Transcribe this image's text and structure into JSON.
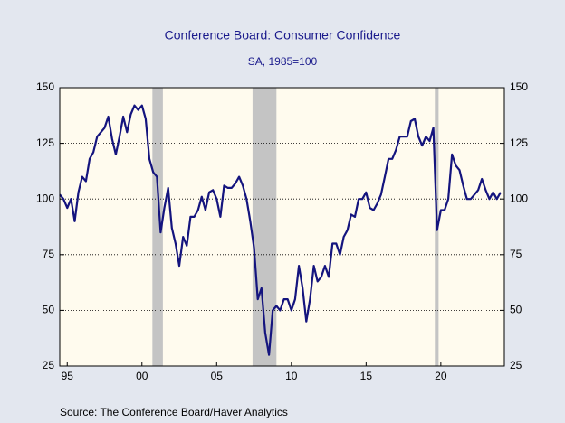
{
  "chart_data": {
    "type": "line",
    "title": "Conference Board: Consumer Confidence",
    "subtitle": "SA, 1985=100",
    "source": "Source:  The Conference Board/Haver Analytics",
    "xlim": [
      1995,
      2024.75
    ],
    "xticks": [
      {
        "value": 1995.5,
        "label": "95"
      },
      {
        "value": 2000.5,
        "label": "00"
      },
      {
        "value": 2005.5,
        "label": "05"
      },
      {
        "value": 2010.5,
        "label": "10"
      },
      {
        "value": 2015.5,
        "label": "15"
      },
      {
        "value": 2020.5,
        "label": "20"
      }
    ],
    "ylim": [
      25,
      150
    ],
    "yticks": [
      25,
      50,
      75,
      100,
      125,
      150
    ],
    "grid": true,
    "recessions": {
      "color": "#c4c4c4",
      "spans": [
        [
          2001.2,
          2001.9
        ],
        [
          2007.9,
          2009.5
        ],
        [
          2020.1,
          2020.35
        ]
      ]
    },
    "x": [
      1995,
      1995.25,
      1995.5,
      1995.75,
      1996,
      1996.25,
      1996.5,
      1996.75,
      1997,
      1997.25,
      1997.5,
      1997.75,
      1998,
      1998.25,
      1998.5,
      1998.75,
      1999,
      1999.25,
      1999.5,
      1999.75,
      2000,
      2000.25,
      2000.5,
      2000.75,
      2001,
      2001.25,
      2001.5,
      2001.75,
      2002,
      2002.25,
      2002.5,
      2002.75,
      2003,
      2003.25,
      2003.5,
      2003.75,
      2004,
      2004.25,
      2004.5,
      2004.75,
      2005,
      2005.25,
      2005.5,
      2005.75,
      2006,
      2006.25,
      2006.5,
      2006.75,
      2007,
      2007.25,
      2007.5,
      2007.75,
      2008,
      2008.25,
      2008.5,
      2008.75,
      2009,
      2009.25,
      2009.5,
      2009.75,
      2010,
      2010.25,
      2010.5,
      2010.75,
      2011,
      2011.25,
      2011.5,
      2011.75,
      2012,
      2012.25,
      2012.5,
      2012.75,
      2013,
      2013.25,
      2013.5,
      2013.75,
      2014,
      2014.25,
      2014.5,
      2014.75,
      2015,
      2015.25,
      2015.5,
      2015.75,
      2016,
      2016.25,
      2016.5,
      2016.75,
      2017,
      2017.25,
      2017.5,
      2017.75,
      2018,
      2018.25,
      2018.5,
      2018.75,
      2019,
      2019.25,
      2019.5,
      2019.75,
      2020,
      2020.25,
      2020.5,
      2020.75,
      2021,
      2021.25,
      2021.5,
      2021.75,
      2022,
      2022.25,
      2022.5,
      2022.75,
      2023,
      2023.25,
      2023.5,
      2023.75,
      2024,
      2024.25,
      2024.5
    ],
    "series": [
      {
        "name": "Consumer Confidence",
        "color": "#14147e",
        "values": [
          102,
          100,
          96,
          100,
          90,
          103,
          110,
          108,
          118,
          121,
          128,
          130,
          132,
          137,
          127,
          120,
          128,
          137,
          130,
          138,
          142,
          140,
          142,
          136,
          118,
          112,
          110,
          85,
          96,
          105,
          87,
          80,
          70,
          83,
          79,
          92,
          92,
          95,
          101,
          95,
          103,
          104,
          100,
          92,
          106,
          105,
          105,
          107,
          110,
          106,
          100,
          90,
          78,
          55,
          60,
          40,
          30,
          50,
          52,
          50,
          55,
          55,
          50,
          55,
          70,
          60,
          45,
          55,
          70,
          63,
          65,
          70,
          65,
          80,
          80,
          75,
          83,
          86,
          93,
          92,
          100,
          100,
          103,
          96,
          95,
          98,
          102,
          110,
          118,
          118,
          122,
          128,
          128,
          128,
          135,
          136,
          128,
          124,
          128,
          126,
          132,
          86,
          95,
          95,
          100,
          120,
          115,
          113,
          106,
          100,
          100,
          102,
          104,
          109,
          104,
          100,
          103,
          100,
          103
        ]
      }
    ]
  }
}
